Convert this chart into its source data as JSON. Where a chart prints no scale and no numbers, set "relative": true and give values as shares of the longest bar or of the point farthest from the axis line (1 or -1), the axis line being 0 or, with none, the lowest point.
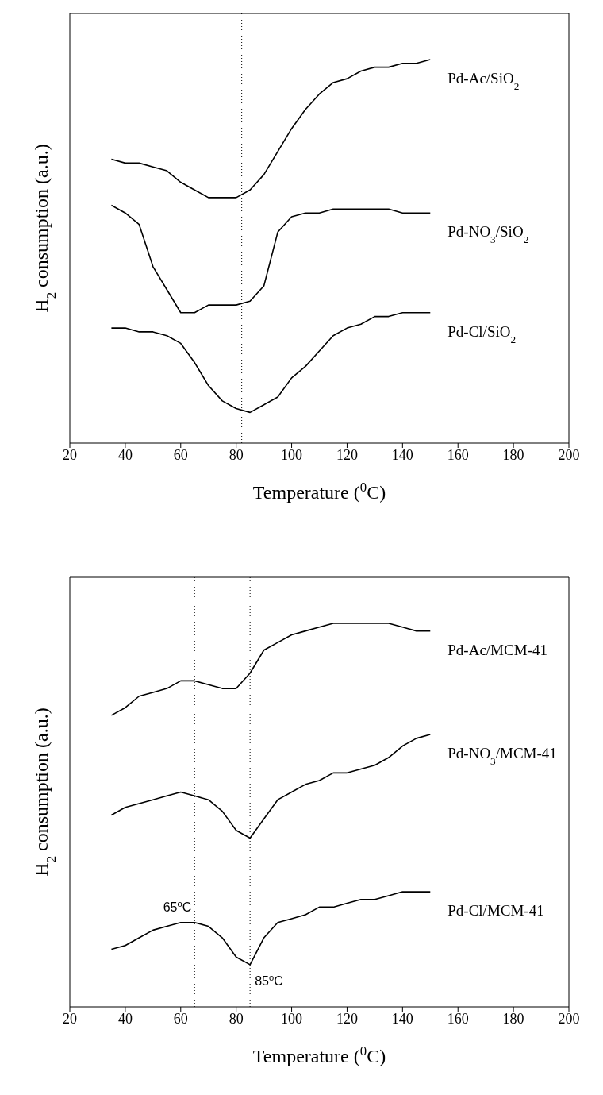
{
  "chart_data": [
    {
      "type": "line",
      "relative": true,
      "xlabel": "Temperature ($^{0}$C)",
      "ylabel": "H$_{2}$ consumption (a.u.)",
      "x": [
        35,
        40,
        45,
        50,
        55,
        60,
        65,
        70,
        75,
        80,
        85,
        90,
        95,
        100,
        105,
        110,
        115,
        120,
        125,
        130,
        135,
        140,
        145,
        150
      ],
      "xlim": [
        20,
        200
      ],
      "xticks": [
        20,
        40,
        60,
        80,
        100,
        120,
        140,
        160,
        180,
        200
      ],
      "series": [
        {
          "name": "Pd-Ac/SiO$_{2}$",
          "color": "#000000",
          "values": [
            0.74,
            0.73,
            0.73,
            0.72,
            0.71,
            0.68,
            0.66,
            0.64,
            0.64,
            0.64,
            0.66,
            0.7,
            0.76,
            0.82,
            0.87,
            0.91,
            0.94,
            0.95,
            0.97,
            0.98,
            0.98,
            0.99,
            0.99,
            1
          ]
        },
        {
          "name": "Pd-NO$_{3}$/SiO$_{2}$",
          "color": "#000000",
          "values": [
            0.62,
            0.6,
            0.57,
            0.46,
            0.4,
            0.34,
            0.34,
            0.36,
            0.36,
            0.36,
            0.37,
            0.41,
            0.55,
            0.59,
            0.6,
            0.6,
            0.61,
            0.61,
            0.61,
            0.61,
            0.61,
            0.6,
            0.6,
            0.6
          ]
        },
        {
          "name": "Pd-Cl/SiO$_{2}$",
          "color": "#000000",
          "values": [
            0.3,
            0.3,
            0.29,
            0.29,
            0.28,
            0.26,
            0.21,
            0.15,
            0.11,
            0.09,
            0.08,
            0.1,
            0.12,
            0.17,
            0.2,
            0.24,
            0.28,
            0.3,
            0.31,
            0.33,
            0.33,
            0.34,
            0.34,
            0.34
          ]
        }
      ],
      "ref_lines": [
        {
          "axis": "x",
          "value": 82,
          "line_style": "dotted"
        }
      ]
    },
    {
      "type": "line",
      "relative": true,
      "xlabel": "Temperature ($^{0}$C)",
      "ylabel": "H$_{2}$ consumption (a.u.)",
      "x": [
        35,
        40,
        45,
        50,
        55,
        60,
        65,
        70,
        75,
        80,
        85,
        90,
        95,
        100,
        105,
        110,
        115,
        120,
        125,
        130,
        135,
        140,
        145,
        150
      ],
      "xlim": [
        20,
        200
      ],
      "xticks": [
        20,
        40,
        60,
        80,
        100,
        120,
        140,
        160,
        180,
        200
      ],
      "series": [
        {
          "name": "Pd-Ac/MCM-41",
          "color": "#000000",
          "values": [
            0.76,
            0.78,
            0.81,
            0.82,
            0.83,
            0.85,
            0.85,
            0.84,
            0.83,
            0.83,
            0.87,
            0.93,
            0.95,
            0.97,
            0.98,
            0.99,
            1.0,
            1.0,
            1,
            1,
            1.0,
            0.99,
            0.98,
            0.98
          ]
        },
        {
          "name": "Pd-NO$_{3}$/MCM-41",
          "color": "#000000",
          "values": [
            0.5,
            0.52,
            0.53,
            0.54,
            0.55,
            0.56,
            0.55,
            0.54,
            0.51,
            0.46,
            0.44,
            0.49,
            0.54,
            0.56,
            0.58,
            0.59,
            0.61,
            0.61,
            0.62,
            0.63,
            0.65,
            0.68,
            0.7,
            0.71
          ]
        },
        {
          "name": "Pd-Cl/MCM-41",
          "color": "#000000",
          "values": [
            0.15,
            0.16,
            0.18,
            0.2,
            0.21,
            0.22,
            0.22,
            0.21,
            0.18,
            0.13,
            0.11,
            0.18,
            0.22,
            0.23,
            0.24,
            0.26,
            0.26,
            0.27,
            0.28,
            0.28,
            0.29,
            0.3,
            0.3,
            0.3
          ]
        }
      ],
      "ref_lines": [
        {
          "axis": "x",
          "value": 65,
          "line_style": "dotted"
        },
        {
          "axis": "x",
          "value": 85,
          "line_style": "dotted"
        }
      ],
      "annotations": [
        {
          "text": "65$^{o}$C",
          "x": 65,
          "y": 0.22
        },
        {
          "text": "85$^{o}$C",
          "x": 85,
          "y": 0.11
        }
      ]
    }
  ]
}
